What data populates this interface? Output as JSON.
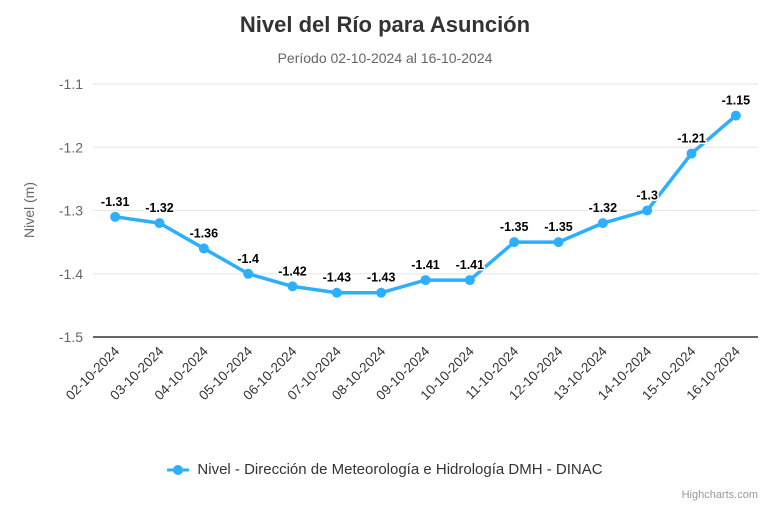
{
  "chart_data": {
    "type": "line",
    "title": "Nivel del Río para Asunción",
    "subtitle": "Período 02-10-2024 al 16-10-2024",
    "xlabel": "",
    "ylabel": "Nivel (m)",
    "categories": [
      "02-10-2024",
      "03-10-2024",
      "04-10-2024",
      "05-10-2024",
      "06-10-2024",
      "07-10-2024",
      "08-10-2024",
      "09-10-2024",
      "10-10-2024",
      "11-10-2024",
      "12-10-2024",
      "13-10-2024",
      "14-10-2024",
      "15-10-2024",
      "16-10-2024"
    ],
    "series": [
      {
        "name": "Nivel - Dirección de Meteorología e Hidrología DMH - DINAC",
        "values": [
          -1.31,
          -1.32,
          -1.36,
          -1.4,
          -1.42,
          -1.43,
          -1.43,
          -1.41,
          -1.41,
          -1.35,
          -1.35,
          -1.32,
          -1.3,
          -1.21,
          -1.15
        ],
        "color": "#2caffe"
      }
    ],
    "ylim": [
      -1.5,
      -1.1
    ],
    "yticks": [
      -1.1,
      -1.2,
      -1.3,
      -1.4,
      -1.5
    ],
    "grid": true,
    "data_labels": true,
    "legend_position": "bottom"
  },
  "credits_label": "Highcharts.com",
  "colors": {
    "series": "#2caffe",
    "grid_line": "#e6e6e6",
    "axis_line": "#333333",
    "title": "#333333",
    "subtitle": "#666666",
    "y_tick_label": "#666666",
    "x_tick_label": "#333333",
    "data_label": "#000000",
    "credits": "#999999"
  }
}
